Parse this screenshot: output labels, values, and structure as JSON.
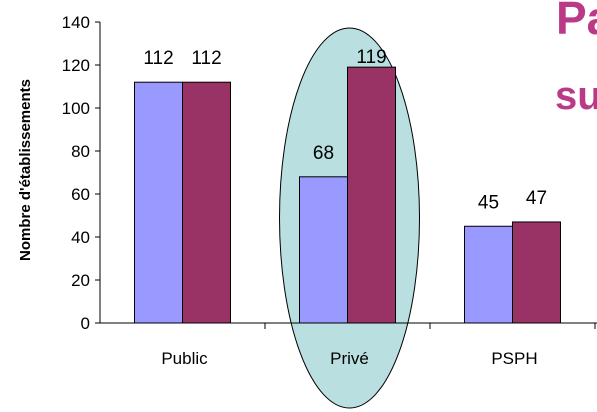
{
  "chart_data": {
    "type": "bar",
    "categories": [
      "Public",
      "Privé",
      "PSPH"
    ],
    "series": [
      {
        "values": [
          112,
          68,
          45
        ],
        "color": "#9999ff"
      },
      {
        "values": [
          112,
          119,
          47
        ],
        "color": "#993366"
      }
    ],
    "ylabel": "Nombre d'établissements",
    "ylim": [
      0,
      140
    ],
    "yticks": [
      0,
      20,
      40,
      60,
      80,
      100,
      120,
      140
    ],
    "grid": false,
    "highlight": {
      "category": "Privé",
      "color": "#b9dfe0"
    }
  },
  "decoration": {
    "fragments": [
      "Pa",
      "su"
    ],
    "color": "#bb3a88"
  }
}
